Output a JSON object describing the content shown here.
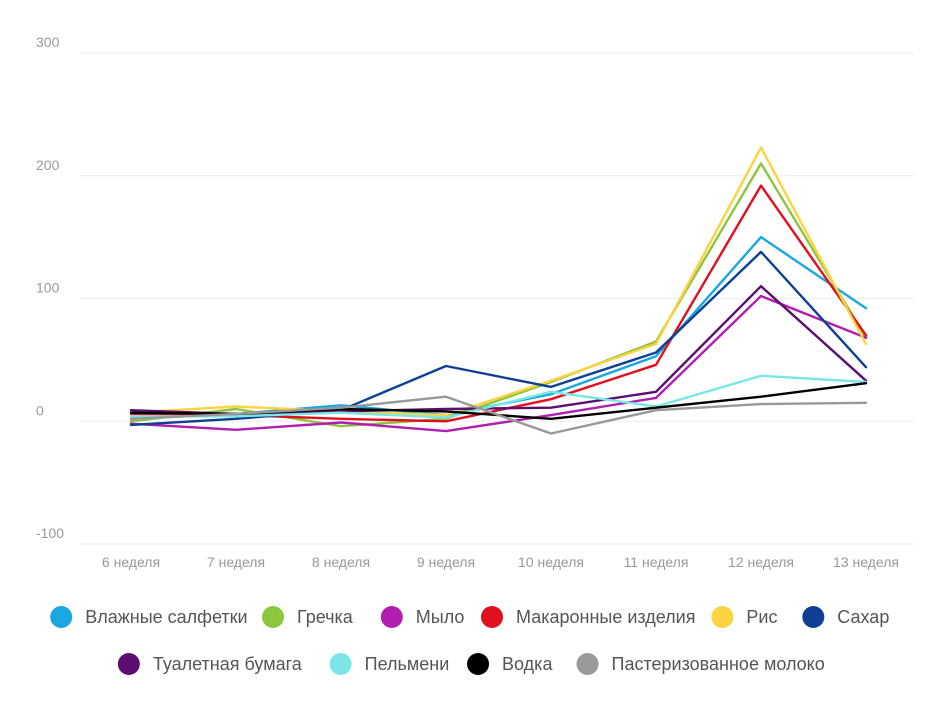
{
  "chart_data": {
    "type": "line",
    "title": "",
    "xlabel": "",
    "ylabel": "",
    "categories": [
      "6 неделя",
      "7 неделя",
      "8 неделя",
      "9 неделя",
      "10 неделя",
      "11 неделя",
      "12 неделя",
      "13 неделя"
    ],
    "ylim": [
      -100,
      300
    ],
    "yticks": [
      -100,
      0,
      100,
      200,
      300
    ],
    "grid": true,
    "legend_position": "bottom",
    "series": [
      {
        "name": "Влажные салфетки",
        "color": "#1aa7e0",
        "values": [
          2,
          6,
          13,
          5,
          22,
          53,
          150,
          92
        ]
      },
      {
        "name": "Гречка",
        "color": "#8cc63f",
        "values": [
          0,
          10,
          -4,
          2,
          32,
          65,
          210,
          68
        ]
      },
      {
        "name": "Мыло",
        "color": "#b01fb0",
        "values": [
          -2,
          -7,
          -1,
          -8,
          5,
          19,
          102,
          68
        ]
      },
      {
        "name": "Макаронные изделия",
        "color": "#e0101e",
        "values": [
          6,
          5,
          2,
          0,
          18,
          46,
          192,
          70
        ]
      },
      {
        "name": "Рис",
        "color": "#fcd341",
        "values": [
          7,
          12,
          8,
          5,
          33,
          63,
          223,
          63
        ]
      },
      {
        "name": "Сахар",
        "color": "#0f3f94",
        "values": [
          -3,
          2,
          9,
          45,
          28,
          56,
          138,
          44
        ]
      },
      {
        "name": "Туалетная бумага",
        "color": "#5b0f6e",
        "values": [
          9,
          6,
          8,
          10,
          11,
          24,
          110,
          33
        ]
      },
      {
        "name": "Пельмени",
        "color": "#7ae6e6",
        "values": [
          4,
          4,
          7,
          3,
          24,
          12,
          37,
          32
        ]
      },
      {
        "name": "Водка",
        "color": "#000000",
        "values": [
          7,
          6,
          10,
          8,
          2,
          11,
          20,
          31
        ]
      },
      {
        "name": "Пастеризованное молоко",
        "color": "#999999",
        "values": [
          2,
          6,
          11,
          20,
          -10,
          9,
          14,
          15
        ]
      }
    ]
  }
}
